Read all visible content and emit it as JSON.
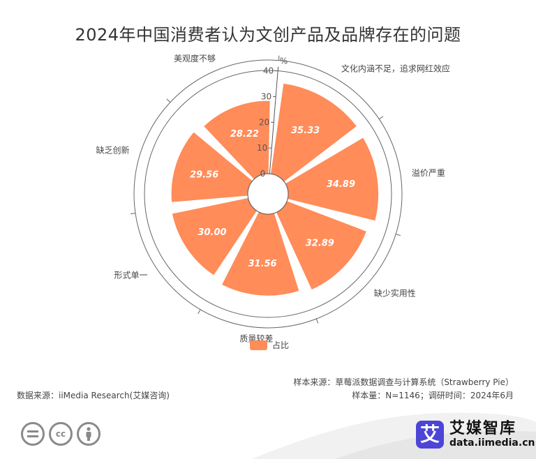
{
  "title": "2024年中国消费者认为文创产品及品牌存在的问题",
  "chart_data": {
    "type": "polar-bar",
    "categories": [
      "文化内涵不足，追求网红效应",
      "溢价严重",
      "缺少实用性",
      "质量较差",
      "形式单一",
      "缺乏创新",
      "美观度不够"
    ],
    "series": [
      {
        "name": "占比",
        "values": [
          35.33,
          34.89,
          32.89,
          31.56,
          30.0,
          29.56,
          28.22
        ]
      }
    ],
    "radial_axis": {
      "min": 0,
      "max": 40,
      "ticks": [
        0,
        10,
        20,
        30,
        40
      ],
      "unit": "%"
    },
    "legend": {
      "position": "bottom-center",
      "entries": [
        "占比"
      ]
    },
    "colors": {
      "bar": "#ff8c59",
      "bar_label": "#ffffff",
      "axis": "#555555"
    }
  },
  "notes": {
    "source": "数据来源：iiMedia Research(艾媒咨询)",
    "sample_source": "样本来源：草莓派数据调查与计算系统（Strawberry Pie）",
    "sample_info": "样本量：N=1146；调研时间：2024年6月"
  },
  "brand": {
    "name": "艾媒智库",
    "domain": "data.iimedia.cn",
    "logo_char": "艾"
  },
  "license_icons": [
    "equal-icon",
    "cc-icon",
    "person-icon"
  ]
}
